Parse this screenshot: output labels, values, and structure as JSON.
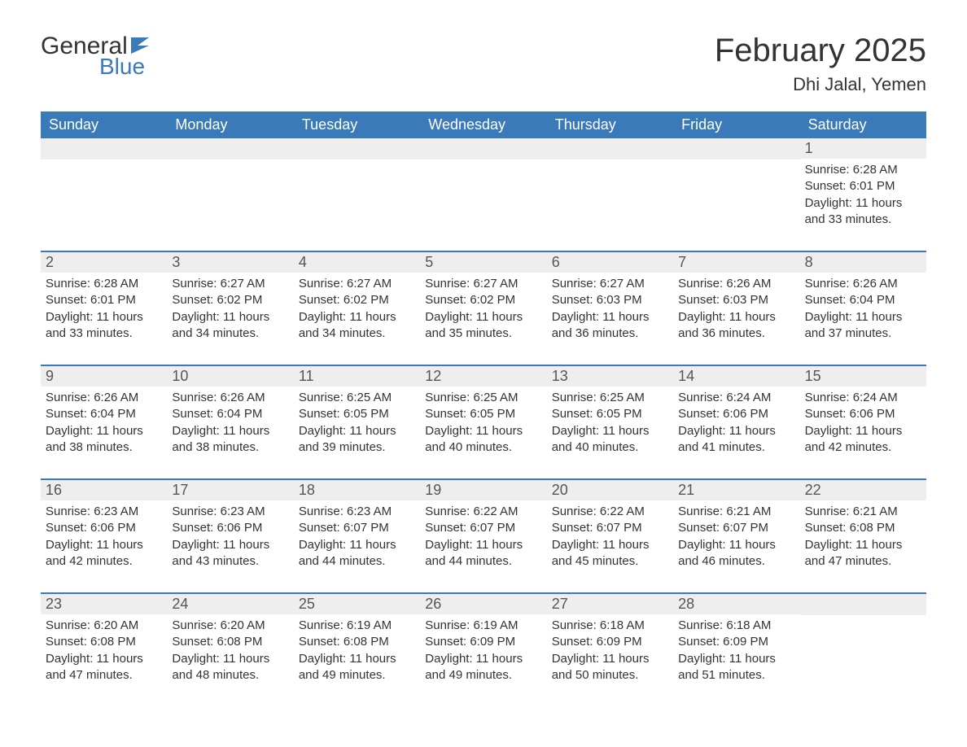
{
  "brand": {
    "word1": "General",
    "word2": "Blue",
    "flag_color": "#3a7ab8"
  },
  "title": "February 2025",
  "location": "Dhi Jalal, Yemen",
  "colors": {
    "header_bg": "#3a7ab8",
    "header_text": "#ffffff",
    "daynum_bg": "#eeeeee",
    "border": "#3a7ab8",
    "text": "#333333"
  },
  "weekdays": [
    "Sunday",
    "Monday",
    "Tuesday",
    "Wednesday",
    "Thursday",
    "Friday",
    "Saturday"
  ],
  "weeks": [
    [
      null,
      null,
      null,
      null,
      null,
      null,
      {
        "n": "1",
        "sunrise": "6:28 AM",
        "sunset": "6:01 PM",
        "daylight": "11 hours and 33 minutes."
      }
    ],
    [
      {
        "n": "2",
        "sunrise": "6:28 AM",
        "sunset": "6:01 PM",
        "daylight": "11 hours and 33 minutes."
      },
      {
        "n": "3",
        "sunrise": "6:27 AM",
        "sunset": "6:02 PM",
        "daylight": "11 hours and 34 minutes."
      },
      {
        "n": "4",
        "sunrise": "6:27 AM",
        "sunset": "6:02 PM",
        "daylight": "11 hours and 34 minutes."
      },
      {
        "n": "5",
        "sunrise": "6:27 AM",
        "sunset": "6:02 PM",
        "daylight": "11 hours and 35 minutes."
      },
      {
        "n": "6",
        "sunrise": "6:27 AM",
        "sunset": "6:03 PM",
        "daylight": "11 hours and 36 minutes."
      },
      {
        "n": "7",
        "sunrise": "6:26 AM",
        "sunset": "6:03 PM",
        "daylight": "11 hours and 36 minutes."
      },
      {
        "n": "8",
        "sunrise": "6:26 AM",
        "sunset": "6:04 PM",
        "daylight": "11 hours and 37 minutes."
      }
    ],
    [
      {
        "n": "9",
        "sunrise": "6:26 AM",
        "sunset": "6:04 PM",
        "daylight": "11 hours and 38 minutes."
      },
      {
        "n": "10",
        "sunrise": "6:26 AM",
        "sunset": "6:04 PM",
        "daylight": "11 hours and 38 minutes."
      },
      {
        "n": "11",
        "sunrise": "6:25 AM",
        "sunset": "6:05 PM",
        "daylight": "11 hours and 39 minutes."
      },
      {
        "n": "12",
        "sunrise": "6:25 AM",
        "sunset": "6:05 PM",
        "daylight": "11 hours and 40 minutes."
      },
      {
        "n": "13",
        "sunrise": "6:25 AM",
        "sunset": "6:05 PM",
        "daylight": "11 hours and 40 minutes."
      },
      {
        "n": "14",
        "sunrise": "6:24 AM",
        "sunset": "6:06 PM",
        "daylight": "11 hours and 41 minutes."
      },
      {
        "n": "15",
        "sunrise": "6:24 AM",
        "sunset": "6:06 PM",
        "daylight": "11 hours and 42 minutes."
      }
    ],
    [
      {
        "n": "16",
        "sunrise": "6:23 AM",
        "sunset": "6:06 PM",
        "daylight": "11 hours and 42 minutes."
      },
      {
        "n": "17",
        "sunrise": "6:23 AM",
        "sunset": "6:06 PM",
        "daylight": "11 hours and 43 minutes."
      },
      {
        "n": "18",
        "sunrise": "6:23 AM",
        "sunset": "6:07 PM",
        "daylight": "11 hours and 44 minutes."
      },
      {
        "n": "19",
        "sunrise": "6:22 AM",
        "sunset": "6:07 PM",
        "daylight": "11 hours and 44 minutes."
      },
      {
        "n": "20",
        "sunrise": "6:22 AM",
        "sunset": "6:07 PM",
        "daylight": "11 hours and 45 minutes."
      },
      {
        "n": "21",
        "sunrise": "6:21 AM",
        "sunset": "6:07 PM",
        "daylight": "11 hours and 46 minutes."
      },
      {
        "n": "22",
        "sunrise": "6:21 AM",
        "sunset": "6:08 PM",
        "daylight": "11 hours and 47 minutes."
      }
    ],
    [
      {
        "n": "23",
        "sunrise": "6:20 AM",
        "sunset": "6:08 PM",
        "daylight": "11 hours and 47 minutes."
      },
      {
        "n": "24",
        "sunrise": "6:20 AM",
        "sunset": "6:08 PM",
        "daylight": "11 hours and 48 minutes."
      },
      {
        "n": "25",
        "sunrise": "6:19 AM",
        "sunset": "6:08 PM",
        "daylight": "11 hours and 49 minutes."
      },
      {
        "n": "26",
        "sunrise": "6:19 AM",
        "sunset": "6:09 PM",
        "daylight": "11 hours and 49 minutes."
      },
      {
        "n": "27",
        "sunrise": "6:18 AM",
        "sunset": "6:09 PM",
        "daylight": "11 hours and 50 minutes."
      },
      {
        "n": "28",
        "sunrise": "6:18 AM",
        "sunset": "6:09 PM",
        "daylight": "11 hours and 51 minutes."
      },
      null
    ]
  ],
  "labels": {
    "sunrise": "Sunrise: ",
    "sunset": "Sunset: ",
    "daylight": "Daylight: "
  }
}
